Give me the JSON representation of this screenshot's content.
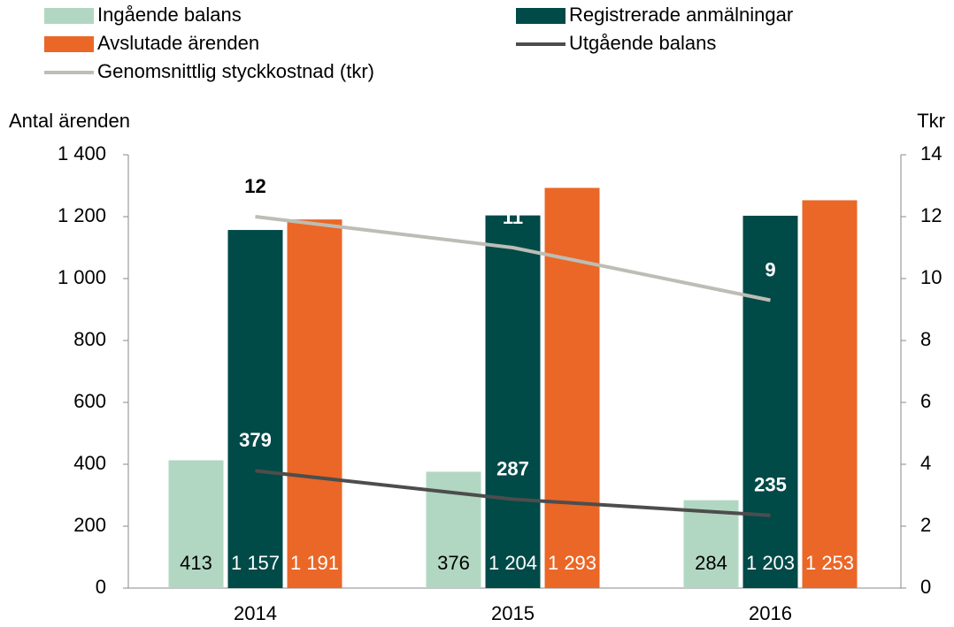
{
  "chart_data": {
    "type": "bar-line",
    "y_label": "Antal ärenden",
    "y2_label": "Tkr",
    "categories": [
      "2014",
      "2015",
      "2016"
    ],
    "series": [
      {
        "name": "Ingående balans",
        "type": "bar",
        "color": "#b1d7c2",
        "values": [
          413,
          376,
          284
        ],
        "value_labels": [
          "413",
          "376",
          "284"
        ]
      },
      {
        "name": "Registrerade anmälningar",
        "type": "bar",
        "color": "#004a48",
        "values": [
          1157,
          1204,
          1203
        ],
        "value_labels": [
          "1 157",
          "1 204",
          "1 203"
        ]
      },
      {
        "name": "Avslutade ärenden",
        "type": "bar",
        "color": "#ea6727",
        "values": [
          1191,
          1293,
          1253
        ],
        "value_labels": [
          "1 191",
          "1 293",
          "1 253"
        ]
      },
      {
        "name": "Utgående balans",
        "type": "line",
        "color": "#4d4d4d",
        "values": [
          379,
          287,
          235
        ]
      },
      {
        "name": "Genomsnittlig styckkostnad (tkr)",
        "type": "line",
        "axis": "y2",
        "color": "#bdbdb5",
        "values": [
          12,
          11,
          9.3
        ],
        "value_labels": [
          "12",
          "11",
          "9"
        ]
      }
    ],
    "ylim": [
      0,
      1400
    ],
    "yticks": [
      0,
      200,
      400,
      600,
      800,
      {
        "value": 1000,
        "label": "1 000"
      },
      {
        "value": 1200,
        "label": "1 200"
      },
      {
        "value": 1400,
        "label": "1 400"
      }
    ],
    "y2lim": [
      0,
      14
    ],
    "y2ticks": [
      0,
      2,
      4,
      6,
      8,
      10,
      12,
      14
    ]
  }
}
